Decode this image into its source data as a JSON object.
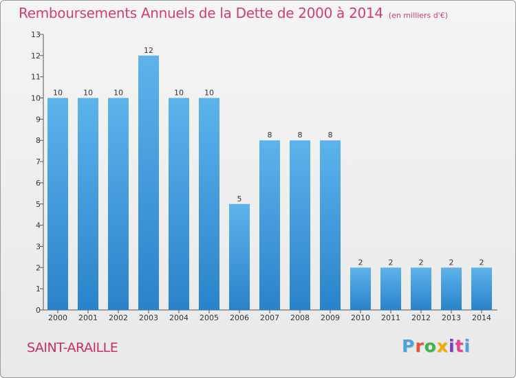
{
  "title": "Remboursements Annuels de la Dette de 2000 à 2014",
  "unit": "(en milliers d'€)",
  "commune": "SAINT-ARAILLE",
  "logo": {
    "text": "Proxiti",
    "colors": [
      "#4aa3df",
      "#e4572e",
      "#3cb44b",
      "#f2a900",
      "#7a3fbf",
      "#e84393",
      "#4aa3df"
    ]
  },
  "colors": {
    "bar_light": "#5eb3ec",
    "bar_dark": "#2a82c9",
    "title": "#d0406a",
    "axis": "#555555"
  },
  "chart_data": {
    "type": "bar",
    "categories": [
      "2000",
      "2001",
      "2002",
      "2003",
      "2004",
      "2005",
      "2006",
      "2007",
      "2008",
      "2009",
      "2010",
      "2011",
      "2012",
      "2013",
      "2014"
    ],
    "values": [
      10,
      10,
      10,
      12,
      10,
      10,
      5,
      8,
      8,
      8,
      2,
      2,
      2,
      2,
      2
    ],
    "ylim": [
      0,
      13
    ],
    "yticks": [
      0,
      1,
      2,
      3,
      4,
      5,
      6,
      7,
      8,
      9,
      10,
      11,
      12,
      13
    ],
    "grid": false,
    "data_labels": true
  }
}
